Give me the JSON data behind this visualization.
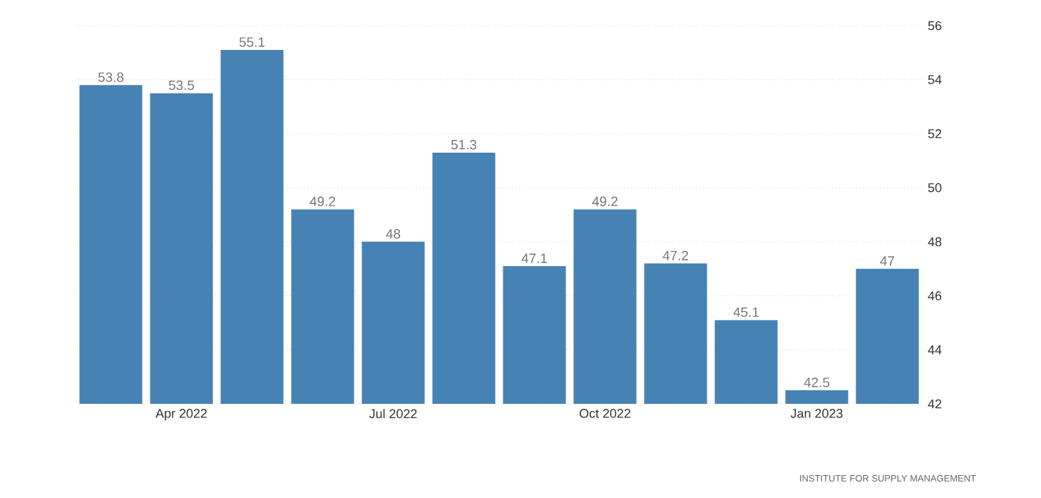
{
  "chart_data": {
    "type": "bar",
    "categories": [
      null,
      "Apr 2022",
      null,
      null,
      "Jul 2022",
      null,
      null,
      "Oct 2022",
      null,
      null,
      "Jan 2023",
      null
    ],
    "values": [
      53.8,
      53.5,
      55.1,
      49.2,
      48,
      51.3,
      47.1,
      49.2,
      47.2,
      45.1,
      42.5,
      47
    ],
    "color": "#4682b4",
    "ylim": [
      42,
      56
    ],
    "yticks": [
      42,
      44,
      46,
      48,
      50,
      52,
      54,
      56
    ],
    "grid": "y",
    "data_labels": true,
    "annotations": [
      "INSTITUTE FOR SUPPLY MANAGEMENT"
    ]
  }
}
